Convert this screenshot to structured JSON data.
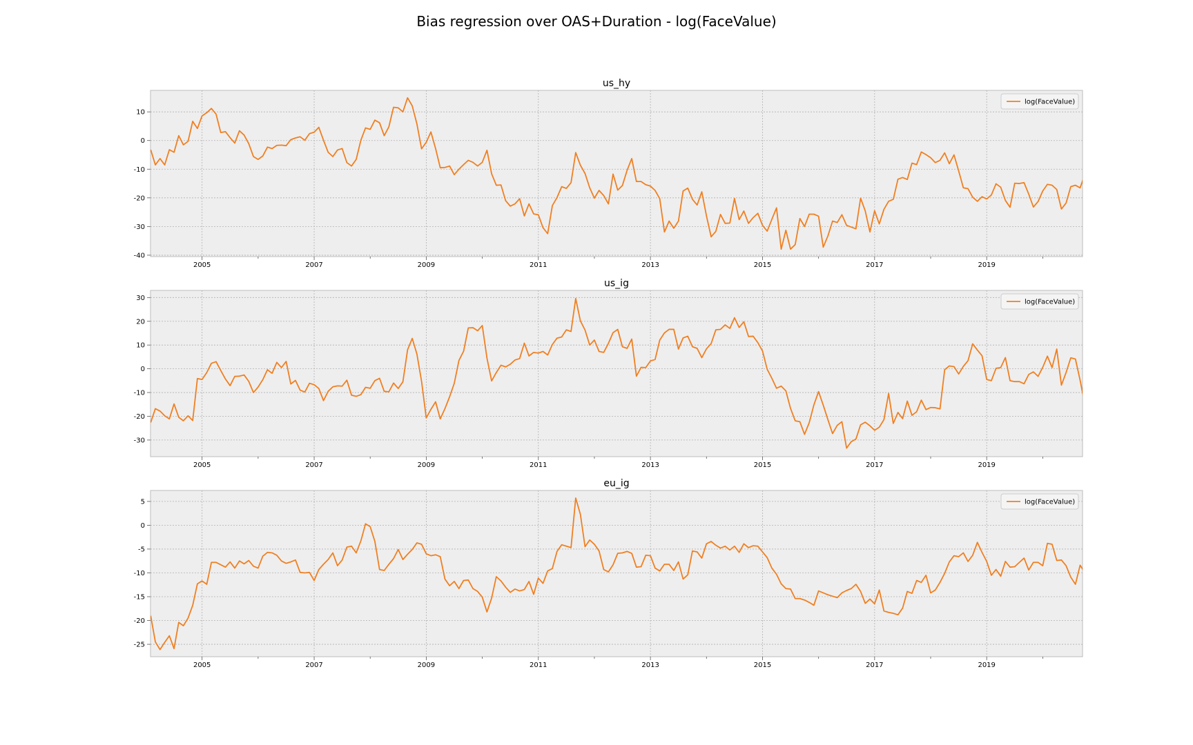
{
  "figure": {
    "title": "Bias regression over OAS+Duration - log(FaceValue)"
  },
  "colors": {
    "line": "#f07f20",
    "panel_bg": "#eeeeee",
    "grid": "#b0b0b0",
    "spine": "#bcbcbc",
    "text": "#000000"
  },
  "chart_data": [
    {
      "type": "line",
      "title": "us_hy",
      "xlabel": "",
      "ylabel": "",
      "xlim": [
        2004.08,
        2020.71
      ],
      "ylim": [
        -40.5,
        17.5
      ],
      "yticks": [
        -40,
        -30,
        -20,
        -10,
        0,
        10
      ],
      "xticks": [
        "2005",
        "2007",
        "2009",
        "2011",
        "2013",
        "2015",
        "2017",
        "2019"
      ],
      "grid": true,
      "legend": "top-right",
      "series": [
        {
          "name": "log(FaceValue)",
          "x_start": 2004.0833,
          "x_step": 0.0833333,
          "values": [
            -3.2,
            -8.5,
            -6.3,
            -8.5,
            -3.2,
            -4.1,
            1.7,
            -1.5,
            -0.3,
            6.7,
            4.2,
            8.6,
            9.7,
            11.2,
            9.2,
            2.8,
            3.1,
            1.0,
            -0.9,
            3.4,
            1.9,
            -1.1,
            -5.6,
            -6.6,
            -5.4,
            -2.3,
            -2.8,
            -1.7,
            -1.6,
            -1.8,
            0.3,
            0.9,
            1.3,
            0.1,
            2.4,
            2.9,
            4.6,
            0.1,
            -4.1,
            -5.6,
            -3.3,
            -2.8,
            -7.7,
            -8.9,
            -6.6,
            0.1,
            4.4,
            3.9,
            7.1,
            6.2,
            1.7,
            4.8,
            11.6,
            11.4,
            10.0,
            14.9,
            12.1,
            5.8,
            -2.9,
            -0.6,
            3.0,
            -2.8,
            -9.5,
            -9.4,
            -8.9,
            -11.9,
            -10.0,
            -8.4,
            -6.9,
            -7.6,
            -8.9,
            -7.6,
            -3.4,
            -11.6,
            -15.6,
            -15.5,
            -21.0,
            -22.9,
            -22.1,
            -20.3,
            -26.3,
            -22.1,
            -25.6,
            -25.9,
            -30.4,
            -32.5,
            -22.7,
            -19.9,
            -16.1,
            -16.7,
            -14.7,
            -4.2,
            -8.6,
            -11.5,
            -16.5,
            -20.1,
            -17.4,
            -19.2,
            -22.1,
            -11.7,
            -17.3,
            -15.7,
            -10.4,
            -6.3,
            -14.3,
            -14.3,
            -15.4,
            -15.9,
            -17.4,
            -20.3,
            -31.9,
            -28.1,
            -30.6,
            -28.1,
            -17.6,
            -16.6,
            -20.5,
            -22.5,
            -17.9,
            -26.3,
            -33.6,
            -31.7,
            -25.8,
            -28.9,
            -28.8,
            -20.2,
            -27.6,
            -24.6,
            -28.9,
            -26.9,
            -25.4,
            -29.6,
            -31.6,
            -27.5,
            -23.5,
            -37.9,
            -31.3,
            -37.9,
            -36.3,
            -27.2,
            -30.0,
            -25.7,
            -25.7,
            -26.4,
            -37.2,
            -33.3,
            -28.1,
            -28.6,
            -25.9,
            -29.6,
            -30.2,
            -30.8,
            -20.1,
            -24.6,
            -31.9,
            -24.5,
            -29.1,
            -24.0,
            -21.2,
            -20.5,
            -13.5,
            -12.9,
            -13.6,
            -7.9,
            -8.4,
            -4.0,
            -4.9,
            -6.0,
            -7.7,
            -6.9,
            -4.3,
            -8.1,
            -5.0,
            -10.6,
            -16.5,
            -16.8,
            -19.8,
            -21.2,
            -19.6,
            -20.4,
            -19.0,
            -15.1,
            -16.3,
            -20.9,
            -23.3,
            -14.9,
            -15.0,
            -14.7,
            -18.7,
            -23.2,
            -21.3,
            -17.6,
            -15.3,
            -15.6,
            -17.1,
            -23.9,
            -21.8,
            -16.1,
            -15.6,
            -16.5,
            -11.9
          ]
        }
      ]
    },
    {
      "type": "line",
      "title": "us_ig",
      "xlabel": "",
      "ylabel": "",
      "xlim": [
        2004.08,
        2020.71
      ],
      "ylim": [
        -37.0,
        33.0
      ],
      "yticks": [
        -30,
        -20,
        -10,
        0,
        10,
        20,
        30
      ],
      "xticks": [
        "2005",
        "2007",
        "2009",
        "2011",
        "2013",
        "2015",
        "2017",
        "2019"
      ],
      "grid": true,
      "legend": "top-right",
      "series": [
        {
          "name": "log(FaceValue)",
          "x_start": 2004.0833,
          "x_step": 0.0833333,
          "values": [
            -22.6,
            -16.8,
            -17.8,
            -19.8,
            -21.1,
            -14.8,
            -20.4,
            -21.9,
            -19.8,
            -21.8,
            -4.1,
            -4.5,
            -1.6,
            2.3,
            3.0,
            -0.7,
            -4.3,
            -7.1,
            -3.2,
            -3.1,
            -2.6,
            -5.3,
            -10.0,
            -7.7,
            -4.6,
            -0.4,
            -1.9,
            2.7,
            0.5,
            3.1,
            -6.4,
            -4.9,
            -9.0,
            -9.8,
            -6.1,
            -6.7,
            -8.3,
            -13.4,
            -9.5,
            -7.6,
            -7.2,
            -7.3,
            -4.8,
            -11.1,
            -11.6,
            -10.9,
            -7.8,
            -8.2,
            -5.0,
            -4.0,
            -9.5,
            -9.7,
            -6.0,
            -8.3,
            -5.5,
            8.0,
            12.8,
            6.2,
            -5.3,
            -20.7,
            -17.1,
            -13.9,
            -21.1,
            -16.8,
            -11.8,
            -6.1,
            3.5,
            7.4,
            17.2,
            17.3,
            16.0,
            18.2,
            4.5,
            -5.1,
            -1.6,
            1.5,
            0.8,
            1.9,
            3.7,
            4.3,
            10.8,
            5.4,
            6.9,
            6.6,
            7.3,
            5.8,
            10.2,
            12.9,
            13.4,
            16.4,
            15.7,
            29.6,
            20.2,
            16.3,
            10.0,
            12.1,
            7.3,
            6.9,
            10.7,
            15.2,
            16.6,
            9.3,
            8.6,
            12.5,
            -3.1,
            0.6,
            0.5,
            3.3,
            3.9,
            12.1,
            15.1,
            16.6,
            16.6,
            8.3,
            13.0,
            13.7,
            9.3,
            8.6,
            4.7,
            8.4,
            10.6,
            16.4,
            16.6,
            18.5,
            17.0,
            21.5,
            17.4,
            19.8,
            13.6,
            13.7,
            11.0,
            7.5,
            -0.2,
            -4.0,
            -8.2,
            -7.3,
            -9.3,
            -16.7,
            -21.9,
            -22.3,
            -27.6,
            -22.7,
            -15.2,
            -9.6,
            -15.3,
            -21.4,
            -27.3,
            -23.8,
            -22.3,
            -33.4,
            -30.7,
            -29.6,
            -23.6,
            -22.5,
            -24.0,
            -25.9,
            -24.6,
            -21.4,
            -10.4,
            -23.0,
            -18.4,
            -21.0,
            -13.6,
            -19.6,
            -18.1,
            -13.2,
            -17.2,
            -16.3,
            -16.4,
            -16.9,
            -0.4,
            1.2,
            0.9,
            -2.2,
            1.0,
            3.4,
            10.5,
            7.9,
            5.5,
            -4.5,
            -5.0,
            0.2,
            0.5,
            4.7,
            -5.0,
            -5.4,
            -5.4,
            -6.3,
            -2.4,
            -1.3,
            -3.2,
            0.6,
            5.3,
            0.5,
            8.3,
            -6.9,
            -1.6,
            4.6,
            4.1,
            -4.8,
            -14.8
          ]
        }
      ]
    },
    {
      "type": "line",
      "title": "eu_ig",
      "xlabel": "",
      "ylabel": "",
      "xlim": [
        2004.08,
        2020.71
      ],
      "ylim": [
        -27.6,
        7.3
      ],
      "yticks": [
        -25,
        -20,
        -15,
        -10,
        -5,
        0,
        5
      ],
      "xticks": [
        "2005",
        "2007",
        "2009",
        "2011",
        "2013",
        "2015",
        "2017",
        "2019"
      ],
      "grid": true,
      "legend": "top-right",
      "series": [
        {
          "name": "log(FaceValue)",
          "x_start": 2004.0833,
          "x_step": 0.0833333,
          "values": [
            -19.0,
            -24.5,
            -26.1,
            -24.6,
            -23.2,
            -25.9,
            -20.4,
            -21.1,
            -19.5,
            -16.8,
            -12.3,
            -11.7,
            -12.4,
            -7.8,
            -7.8,
            -8.3,
            -8.8,
            -7.7,
            -9.0,
            -7.5,
            -8.1,
            -7.4,
            -8.6,
            -9.0,
            -6.5,
            -5.7,
            -5.8,
            -6.3,
            -7.5,
            -8.0,
            -7.7,
            -7.3,
            -9.9,
            -10.0,
            -9.9,
            -11.6,
            -9.3,
            -8.2,
            -7.2,
            -5.8,
            -8.5,
            -7.3,
            -4.6,
            -4.4,
            -5.8,
            -3.3,
            0.3,
            -0.3,
            -3.4,
            -9.3,
            -9.5,
            -8.2,
            -7.0,
            -5.1,
            -7.2,
            -6.1,
            -5.1,
            -3.7,
            -4.0,
            -6.0,
            -6.4,
            -6.2,
            -6.6,
            -11.3,
            -12.7,
            -11.8,
            -13.3,
            -11.6,
            -11.5,
            -13.3,
            -13.9,
            -15.1,
            -18.2,
            -15.3,
            -10.8,
            -11.7,
            -13.0,
            -14.1,
            -13.4,
            -13.8,
            -13.5,
            -11.8,
            -14.5,
            -11.1,
            -12.2,
            -9.6,
            -9.1,
            -5.5,
            -4.1,
            -4.4,
            -4.7,
            5.7,
            2.3,
            -4.5,
            -3.1,
            -4.0,
            -5.4,
            -9.3,
            -9.8,
            -8.3,
            -5.9,
            -5.8,
            -5.5,
            -5.9,
            -8.8,
            -8.7,
            -6.3,
            -6.4,
            -9.0,
            -9.6,
            -8.2,
            -8.2,
            -9.5,
            -7.7,
            -11.3,
            -10.4,
            -5.4,
            -5.6,
            -6.9,
            -3.9,
            -3.4,
            -4.2,
            -4.8,
            -4.4,
            -5.2,
            -4.4,
            -5.7,
            -3.9,
            -4.7,
            -4.3,
            -4.4,
            -5.6,
            -6.8,
            -9.0,
            -10.3,
            -12.3,
            -13.3,
            -13.4,
            -15.4,
            -15.4,
            -15.7,
            -16.2,
            -16.8,
            -13.8,
            -14.2,
            -14.6,
            -14.9,
            -15.2,
            -14.2,
            -13.7,
            -13.3,
            -12.4,
            -13.9,
            -16.4,
            -15.5,
            -16.5,
            -13.6,
            -18.0,
            -18.3,
            -18.5,
            -18.8,
            -17.4,
            -13.9,
            -14.3,
            -11.6,
            -12.0,
            -10.5,
            -14.2,
            -13.6,
            -12.0,
            -10.1,
            -7.7,
            -6.4,
            -6.6,
            -5.8,
            -7.6,
            -6.3,
            -3.6,
            -5.7,
            -7.6,
            -10.5,
            -9.3,
            -10.7,
            -7.6,
            -8.8,
            -8.7,
            -7.8,
            -6.9,
            -9.4,
            -7.8,
            -7.8,
            -8.5,
            -3.8,
            -4.0,
            -7.4,
            -7.3,
            -8.5,
            -10.9,
            -12.4,
            -8.4,
            -9.9
          ]
        }
      ]
    }
  ]
}
